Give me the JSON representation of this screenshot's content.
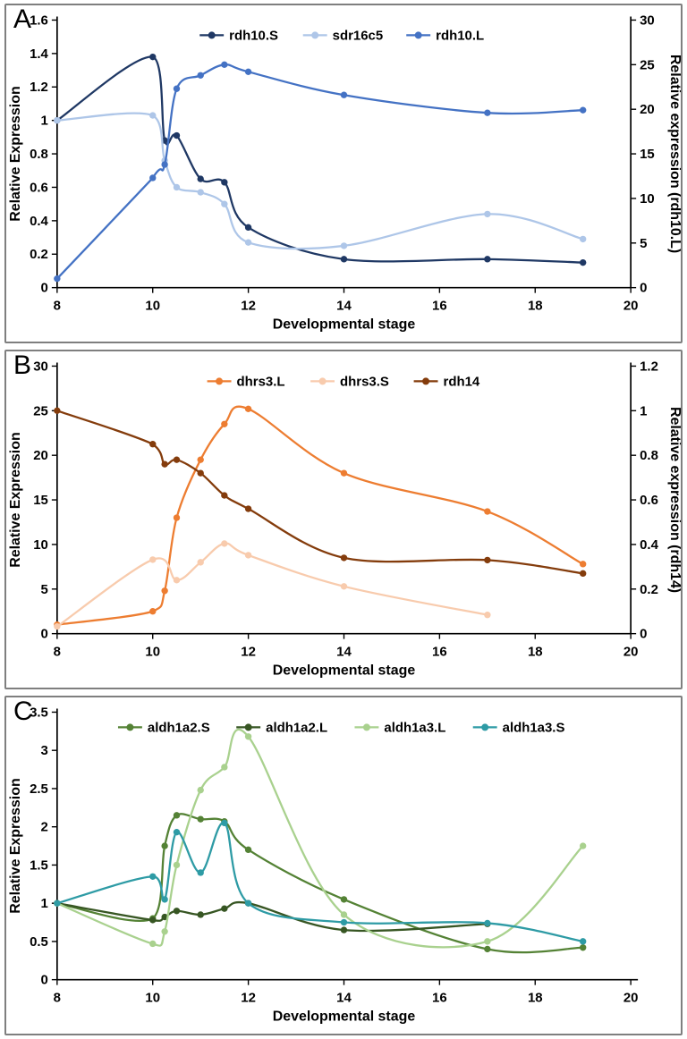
{
  "figure": {
    "background": "#ffffff",
    "panel_border_color": "#7f7f7f"
  },
  "chart_data": [
    {
      "type": "line",
      "panel_label": "A",
      "xlabel": "Developmental stage",
      "ylabel_left": "Relative Expression",
      "ylabel_right": "Relative expression (rdh10.L)",
      "xlim": [
        8,
        20
      ],
      "xticks": [
        8,
        10,
        12,
        14,
        16,
        18,
        20
      ],
      "ylim_left": [
        0,
        1.6
      ],
      "yticks_left": [
        0,
        0.2,
        0.4,
        0.6,
        0.8,
        1,
        1.2,
        1.4,
        1.6
      ],
      "ylim_right": [
        0,
        30
      ],
      "yticks_right": [
        0,
        5,
        10,
        15,
        20,
        25,
        30
      ],
      "grid": false,
      "legend_position": "top-center",
      "series": [
        {
          "name": "rdh10.S",
          "color": "#1f3864",
          "axis": "left",
          "x": [
            8,
            10,
            10.25,
            10.5,
            11,
            11.5,
            12,
            14,
            17,
            19
          ],
          "y": [
            1.0,
            1.38,
            0.88,
            0.91,
            0.65,
            0.63,
            0.36,
            0.17,
            0.17,
            0.15
          ]
        },
        {
          "name": "sdr16c5",
          "color": "#aec6e8",
          "axis": "left",
          "x": [
            8,
            10,
            10.25,
            10.5,
            11,
            11.5,
            12,
            14,
            17,
            19
          ],
          "y": [
            1.0,
            1.03,
            0.76,
            0.6,
            0.57,
            0.5,
            0.27,
            0.25,
            0.44,
            0.29
          ]
        },
        {
          "name": "rdh10.L",
          "color": "#4472c4",
          "axis": "right",
          "x": [
            8,
            10,
            10.25,
            10.5,
            11,
            11.5,
            12,
            14,
            17,
            19
          ],
          "y": [
            1.0,
            12.3,
            13.8,
            22.3,
            23.8,
            25.0,
            24.2,
            21.6,
            19.6,
            19.9
          ]
        }
      ]
    },
    {
      "type": "line",
      "panel_label": "B",
      "xlabel": "Developmental stage",
      "ylabel_left": "Relative Expression",
      "ylabel_right": "Relative expression (rdh14)",
      "xlim": [
        8,
        20
      ],
      "xticks": [
        8,
        10,
        12,
        14,
        16,
        18,
        20
      ],
      "ylim_left": [
        0,
        30
      ],
      "yticks_left": [
        0,
        5,
        10,
        15,
        20,
        25,
        30
      ],
      "ylim_right": [
        0,
        1.2
      ],
      "yticks_right": [
        0,
        0.2,
        0.4,
        0.6,
        0.8,
        1,
        1.2
      ],
      "grid": false,
      "legend_position": "top-center",
      "series": [
        {
          "name": "dhrs3.L",
          "color": "#ed7d31",
          "axis": "left",
          "x": [
            8,
            10,
            10.25,
            10.5,
            11,
            11.5,
            12,
            14,
            17,
            19
          ],
          "y": [
            1.0,
            2.5,
            4.8,
            13.0,
            19.5,
            23.5,
            25.2,
            18.0,
            13.7,
            7.8
          ]
        },
        {
          "name": "dhrs3.S",
          "color": "#f8cbad",
          "axis": "left",
          "x": [
            8,
            10,
            10.5,
            11,
            11.5,
            12,
            14,
            17
          ],
          "y": [
            0.8,
            8.3,
            6.0,
            8.0,
            10.1,
            8.8,
            5.3,
            2.1
          ]
        },
        {
          "name": "rdh14",
          "color": "#843c0c",
          "axis": "right",
          "x": [
            8,
            10,
            10.25,
            10.5,
            11,
            11.5,
            12,
            14,
            17,
            19
          ],
          "y": [
            1.0,
            0.85,
            0.76,
            0.78,
            0.72,
            0.62,
            0.56,
            0.34,
            0.33,
            0.27
          ]
        }
      ]
    },
    {
      "type": "line",
      "panel_label": "C",
      "xlabel": "Developmental stage",
      "ylabel_left": "Relative Expression",
      "xlim": [
        8,
        20
      ],
      "xticks": [
        8,
        10,
        12,
        14,
        16,
        18,
        20
      ],
      "ylim_left": [
        0,
        3.5
      ],
      "yticks_left": [
        0,
        0.5,
        1,
        1.5,
        2,
        2.5,
        3,
        3.5
      ],
      "grid": false,
      "legend_position": "top-center",
      "series": [
        {
          "name": "aldh1a2.S",
          "color": "#548235",
          "axis": "left",
          "x": [
            8,
            10,
            10.25,
            10.5,
            11,
            11.5,
            12,
            14,
            17,
            19
          ],
          "y": [
            1.0,
            0.8,
            1.75,
            2.15,
            2.1,
            2.07,
            1.7,
            1.05,
            0.4,
            0.42
          ]
        },
        {
          "name": "aldh1a2.L",
          "color": "#375623",
          "axis": "left",
          "x": [
            8,
            10,
            10.25,
            10.5,
            11,
            11.5,
            12,
            14,
            17
          ],
          "y": [
            1.0,
            0.78,
            0.82,
            0.9,
            0.85,
            0.93,
            1.0,
            0.65,
            0.73
          ]
        },
        {
          "name": "aldh1a3.L",
          "color": "#a9d18e",
          "axis": "left",
          "x": [
            8,
            10,
            10.25,
            10.5,
            11,
            11.5,
            12,
            14,
            17,
            19
          ],
          "y": [
            1.0,
            0.47,
            0.63,
            1.5,
            2.48,
            2.78,
            3.18,
            0.85,
            0.5,
            1.75
          ]
        },
        {
          "name": "aldh1a3.S",
          "color": "#2e9ba5",
          "axis": "left",
          "x": [
            8,
            10,
            10.25,
            10.5,
            11,
            11.5,
            12,
            14,
            17,
            19
          ],
          "y": [
            1.0,
            1.35,
            1.05,
            1.93,
            1.4,
            2.05,
            1.0,
            0.75,
            0.74,
            0.5
          ]
        }
      ]
    }
  ]
}
